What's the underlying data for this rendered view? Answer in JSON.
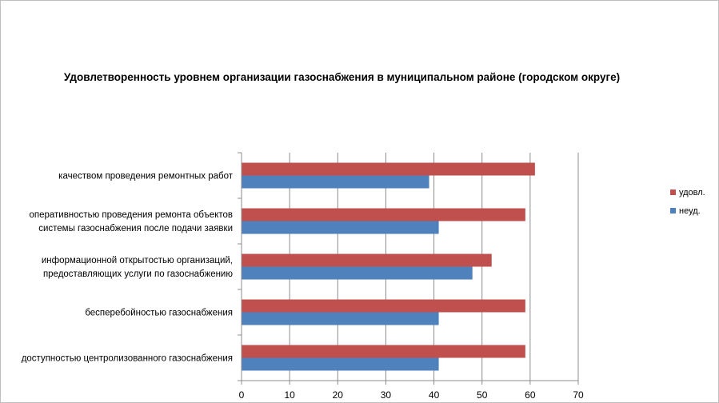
{
  "chart_data": {
    "type": "bar",
    "orientation": "horizontal",
    "title": "Удовлетворенность уровнем организации газоснабжения в муниципальном районе (городском округе)",
    "categories": [
      [
        "качеством проведения ремонтных работ"
      ],
      [
        "оперативностью проведения ремонта объектов",
        "системы газоснабжения после подачи заявки"
      ],
      [
        "информационной открытостью организаций,",
        "предоставляющих услуги по газоснабжению"
      ],
      [
        "бесперебойностью газоснабжения"
      ],
      [
        "доступностью центролизованного газоснабжения"
      ]
    ],
    "series": [
      {
        "name": "удовл.",
        "color": "#c0504d",
        "values": [
          61,
          59,
          52,
          59,
          59
        ]
      },
      {
        "name": "неуд.",
        "color": "#4f81bd",
        "values": [
          39,
          41,
          48,
          41,
          41
        ]
      }
    ],
    "xlim": [
      0,
      70
    ],
    "xticks": [
      0,
      10,
      20,
      30,
      40,
      50,
      60,
      70
    ],
    "grid": true,
    "legend_position": "right"
  }
}
